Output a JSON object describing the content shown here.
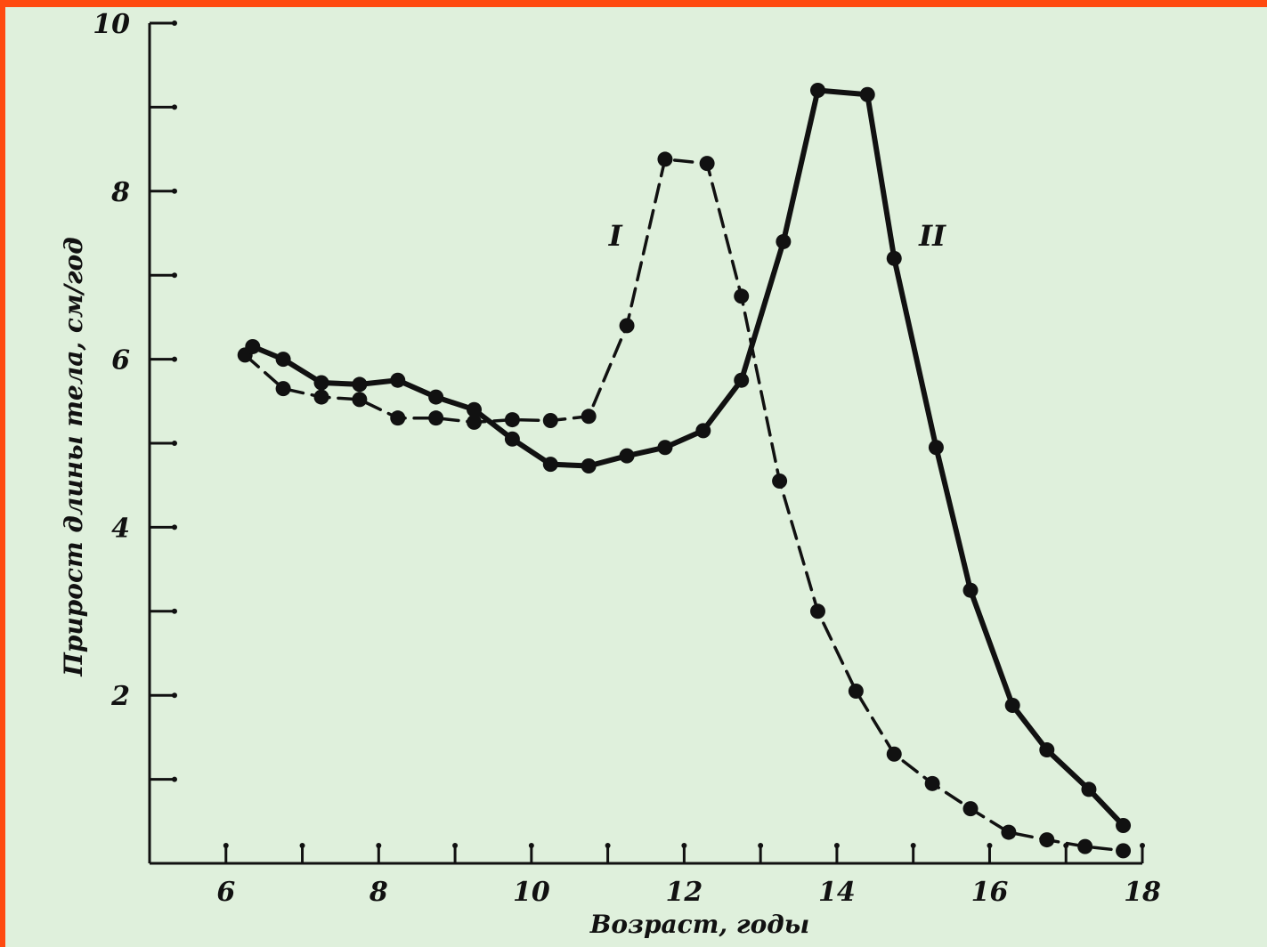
{
  "chart_data": {
    "type": "line",
    "xlabel": "Возраст, годы",
    "ylabel": "Прирост длины тела, см/год",
    "xlim": [
      5,
      18
    ],
    "ylim": [
      0,
      10
    ],
    "x_ticks": [
      6,
      7,
      8,
      9,
      10,
      11,
      12,
      13,
      14,
      15,
      16,
      17,
      18
    ],
    "x_tick_labels": [
      "6",
      "8",
      "10",
      "12",
      "14",
      "16",
      "18"
    ],
    "x_tick_label_values": [
      6,
      8,
      10,
      12,
      14,
      16,
      18
    ],
    "y_ticks": [
      1,
      2,
      3,
      4,
      5,
      6,
      7,
      8,
      9,
      10
    ],
    "y_tick_labels": [
      "2",
      "4",
      "6",
      "8",
      "10"
    ],
    "y_tick_label_values": [
      2,
      4,
      6,
      8,
      10
    ],
    "grid": false,
    "series": [
      {
        "name": "I",
        "style": "dashed",
        "color": "#111111",
        "x": [
          6.25,
          6.75,
          7.25,
          7.75,
          8.25,
          8.75,
          9.25,
          9.75,
          10.25,
          10.75,
          11.25,
          11.75,
          12.3,
          12.75,
          13.25,
          13.75,
          14.25,
          14.75,
          15.25,
          15.75,
          16.25,
          16.75,
          17.25,
          17.75
        ],
        "y": [
          6.05,
          5.65,
          5.55,
          5.52,
          5.3,
          5.3,
          5.25,
          5.28,
          5.27,
          5.32,
          6.4,
          8.38,
          8.33,
          6.75,
          4.55,
          3.0,
          2.05,
          1.3,
          0.95,
          0.65,
          0.37,
          0.28,
          0.2,
          0.15
        ]
      },
      {
        "name": "II",
        "style": "solid",
        "color": "#111111",
        "x": [
          6.35,
          6.75,
          7.25,
          7.75,
          8.25,
          8.75,
          9.25,
          9.75,
          10.25,
          10.75,
          11.25,
          11.75,
          12.25,
          12.75,
          13.3,
          13.75,
          14.4,
          14.75,
          15.3,
          15.75,
          16.3,
          16.75,
          17.3,
          17.75
        ],
        "y": [
          6.15,
          6.0,
          5.72,
          5.7,
          5.75,
          5.55,
          5.4,
          5.05,
          4.75,
          4.73,
          4.85,
          4.95,
          5.15,
          5.75,
          7.4,
          9.2,
          9.15,
          7.2,
          4.95,
          3.25,
          1.88,
          1.35,
          0.88,
          0.45
        ]
      }
    ],
    "annotations": [
      {
        "text": "I",
        "x": 11.1,
        "y": 7.35
      },
      {
        "text": "II",
        "x": 15.25,
        "y": 7.35
      }
    ]
  }
}
